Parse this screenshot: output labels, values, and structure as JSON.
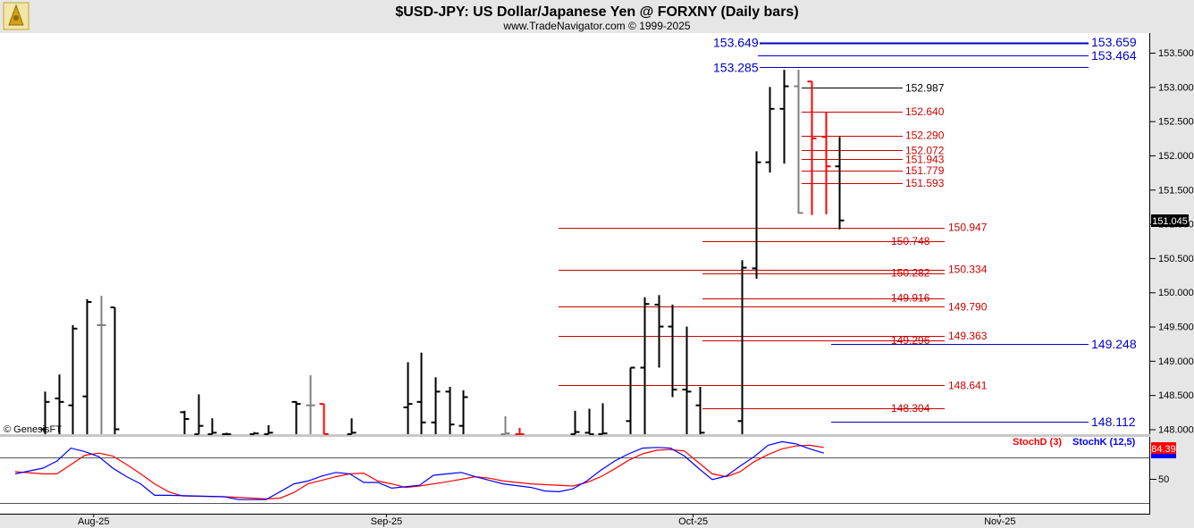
{
  "header": {
    "title": "$USD-JPY:  US Dollar/Japanese Yen @ FORXNY  (Daily bars)",
    "subtitle": "www.TradeNavigator.com © 1999-2025",
    "watermark": "© GenesisFT"
  },
  "colors": {
    "bar_black": "#000000",
    "bar_red": "#ff0000",
    "bar_gray": "#808080",
    "level_red": "#cc0000",
    "level_blue": "#0000cc",
    "stoch_d": "#ff0000",
    "stoch_k": "#0000ff",
    "price_tag_bg": "#000000",
    "stoch_tag_bg": "#ff0000"
  },
  "chart_data": [
    {
      "type": "bar",
      "subtype": "ohlc",
      "title": "$USD-JPY:  US Dollar/Japanese Yen @ FORXNY  (Daily bars)",
      "ylim": [
        147.9,
        153.75
      ],
      "y_ticks": [
        "153.500",
        "153.000",
        "152.500",
        "152.000",
        "151.500",
        "151.000",
        "150.500",
        "150.000",
        "149.500",
        "149.000",
        "148.500",
        "148.000"
      ],
      "y_tick_values": [
        153.5,
        153.0,
        152.5,
        152.0,
        151.5,
        151.0,
        150.5,
        150.0,
        149.5,
        149.0,
        148.5,
        148.0
      ],
      "x_labels": [
        "Aug-25",
        "Sep-25",
        "Oct-25",
        "Nov-25"
      ],
      "x_label_slots": [
        5.5,
        26.5,
        48.5,
        70.5
      ],
      "last_price": "151.045",
      "bars": [
        {
          "slot": 2,
          "o": 148.0,
          "h": 148.55,
          "l": 147.9,
          "c": 148.4,
          "color": "black"
        },
        {
          "slot": 3,
          "o": 148.45,
          "h": 148.8,
          "l": 147.9,
          "c": 148.4,
          "color": "black"
        },
        {
          "slot": 4,
          "o": 148.35,
          "h": 149.52,
          "l": 147.9,
          "c": 149.47,
          "color": "black"
        },
        {
          "slot": 5,
          "o": 148.48,
          "h": 149.9,
          "l": 147.9,
          "c": 149.86,
          "color": "black"
        },
        {
          "slot": 6,
          "o": 149.52,
          "h": 149.95,
          "l": 147.9,
          "c": 149.52,
          "color": "gray"
        },
        {
          "slot": 7,
          "o": 149.78,
          "h": 149.78,
          "l": 147.9,
          "c": 148.0,
          "color": "black"
        },
        {
          "slot": 12,
          "o": 148.25,
          "h": 148.27,
          "l": 147.9,
          "c": 148.15,
          "color": "black"
        },
        {
          "slot": 13,
          "o": 147.9,
          "h": 148.51,
          "l": 147.9,
          "c": 148.05,
          "color": "black"
        },
        {
          "slot": 14,
          "o": 147.9,
          "h": 148.16,
          "l": 147.9,
          "c": 147.95,
          "color": "black"
        },
        {
          "slot": 15,
          "o": 147.92,
          "h": 147.95,
          "l": 147.9,
          "c": 147.92,
          "color": "black"
        },
        {
          "slot": 17,
          "o": 147.9,
          "h": 147.96,
          "l": 147.9,
          "c": 147.94,
          "color": "black"
        },
        {
          "slot": 18,
          "o": 147.9,
          "h": 148.06,
          "l": 147.9,
          "c": 147.95,
          "color": "black"
        },
        {
          "slot": 20,
          "o": 148.4,
          "h": 148.41,
          "l": 147.9,
          "c": 148.37,
          "color": "black"
        },
        {
          "slot": 21,
          "o": 148.35,
          "h": 148.79,
          "l": 147.9,
          "c": 148.35,
          "color": "gray"
        },
        {
          "slot": 22,
          "o": 148.37,
          "h": 148.37,
          "l": 147.9,
          "c": 147.93,
          "color": "red"
        },
        {
          "slot": 24,
          "o": 147.9,
          "h": 148.16,
          "l": 147.9,
          "c": 147.95,
          "color": "black"
        },
        {
          "slot": 28,
          "o": 148.32,
          "h": 148.98,
          "l": 147.9,
          "c": 148.37,
          "color": "black"
        },
        {
          "slot": 29,
          "o": 148.4,
          "h": 149.12,
          "l": 147.9,
          "c": 148.1,
          "color": "black"
        },
        {
          "slot": 30,
          "o": 148.1,
          "h": 148.76,
          "l": 147.9,
          "c": 148.55,
          "color": "black"
        },
        {
          "slot": 31,
          "o": 148.55,
          "h": 148.62,
          "l": 147.9,
          "c": 148.07,
          "color": "black"
        },
        {
          "slot": 32,
          "o": 148.05,
          "h": 148.57,
          "l": 147.9,
          "c": 148.47,
          "color": "black"
        },
        {
          "slot": 35,
          "o": 147.92,
          "h": 148.19,
          "l": 147.9,
          "c": 147.94,
          "color": "gray"
        },
        {
          "slot": 36,
          "o": 147.92,
          "h": 148.02,
          "l": 147.9,
          "c": 147.92,
          "color": "red"
        },
        {
          "slot": 40,
          "o": 147.9,
          "h": 148.27,
          "l": 147.9,
          "c": 147.96,
          "color": "black"
        },
        {
          "slot": 41,
          "o": 147.95,
          "h": 148.3,
          "l": 147.9,
          "c": 147.92,
          "color": "black"
        },
        {
          "slot": 42,
          "o": 147.93,
          "h": 148.38,
          "l": 147.9,
          "c": 147.94,
          "color": "black"
        },
        {
          "slot": 44,
          "o": 148.12,
          "h": 148.9,
          "l": 147.9,
          "c": 148.9,
          "color": "black"
        },
        {
          "slot": 45,
          "o": 148.9,
          "h": 149.93,
          "l": 147.9,
          "c": 149.83,
          "color": "black"
        },
        {
          "slot": 46,
          "o": 149.82,
          "h": 149.96,
          "l": 148.9,
          "c": 149.5,
          "color": "black"
        },
        {
          "slot": 47,
          "o": 149.5,
          "h": 149.82,
          "l": 148.47,
          "c": 148.58,
          "color": "black"
        },
        {
          "slot": 48,
          "o": 148.58,
          "h": 149.5,
          "l": 147.9,
          "c": 148.55,
          "color": "black"
        },
        {
          "slot": 49,
          "o": 148.35,
          "h": 148.62,
          "l": 147.9,
          "c": 147.95,
          "color": "black"
        },
        {
          "slot": 52,
          "o": 148.12,
          "h": 150.47,
          "l": 147.9,
          "c": 150.36,
          "color": "black"
        },
        {
          "slot": 53,
          "o": 150.35,
          "h": 152.06,
          "l": 150.2,
          "c": 151.9,
          "color": "black"
        },
        {
          "slot": 54,
          "o": 151.9,
          "h": 153.0,
          "l": 151.75,
          "c": 152.68,
          "color": "black"
        },
        {
          "slot": 55,
          "o": 152.68,
          "h": 153.25,
          "l": 151.88,
          "c": 153.01,
          "color": "black"
        },
        {
          "slot": 56,
          "o": 153.01,
          "h": 153.25,
          "l": 151.15,
          "c": 151.16,
          "color": "gray"
        },
        {
          "slot": 57,
          "o": 153.08,
          "h": 153.08,
          "l": 151.13,
          "c": 152.25,
          "color": "red"
        },
        {
          "slot": 58,
          "o": 152.27,
          "h": 152.63,
          "l": 151.14,
          "c": 151.84,
          "color": "red"
        },
        {
          "slot": 59,
          "o": 151.84,
          "h": 152.27,
          "l": 150.92,
          "c": 151.05,
          "color": "black"
        }
      ],
      "levels": [
        {
          "label": "153.649",
          "value": 153.649,
          "color": "blue",
          "style": "thick",
          "label_pos": "left"
        },
        {
          "label": "153.659",
          "value": 153.659,
          "color": "blue",
          "style": "thin",
          "label_pos": "right"
        },
        {
          "label": "153.464",
          "value": 153.464,
          "color": "blue",
          "style": "thin",
          "label_pos": "right"
        },
        {
          "label": "153.285",
          "value": 153.285,
          "color": "blue",
          "style": "thin",
          "label_pos": "left"
        },
        {
          "label": "152.987",
          "value": 152.987,
          "color": "black",
          "style": "thin",
          "label_pos": "short"
        },
        {
          "label": "152.640",
          "value": 152.64,
          "color": "red",
          "style": "thin",
          "label_pos": "short"
        },
        {
          "label": "152.290",
          "value": 152.29,
          "color": "red",
          "style": "thin",
          "label_pos": "short"
        },
        {
          "label": "152.072",
          "value": 152.072,
          "color": "red",
          "style": "thin",
          "label_pos": "short"
        },
        {
          "label": "151.943",
          "value": 151.943,
          "color": "red",
          "style": "thin",
          "label_pos": "short"
        },
        {
          "label": "151.779",
          "value": 151.779,
          "color": "red",
          "style": "thin",
          "label_pos": "short"
        },
        {
          "label": "151.593",
          "value": 151.593,
          "color": "red",
          "style": "thin",
          "label_pos": "short"
        },
        {
          "label": "150.947",
          "value": 150.947,
          "color": "red",
          "style": "thin",
          "label_pos": "long"
        },
        {
          "label": "150.748",
          "value": 150.748,
          "color": "red",
          "style": "thin",
          "label_pos": "mid"
        },
        {
          "label": "150.334",
          "value": 150.334,
          "color": "red",
          "style": "thin",
          "label_pos": "long"
        },
        {
          "label": "150.282",
          "value": 150.282,
          "color": "red",
          "style": "thin",
          "label_pos": "mid"
        },
        {
          "label": "149.916",
          "value": 149.916,
          "color": "red",
          "style": "thin",
          "label_pos": "mid"
        },
        {
          "label": "149.790",
          "value": 149.79,
          "color": "red",
          "style": "thin",
          "label_pos": "long"
        },
        {
          "label": "149.363",
          "value": 149.363,
          "color": "red",
          "style": "thin",
          "label_pos": "long"
        },
        {
          "label": "149.296",
          "value": 149.296,
          "color": "red",
          "style": "thin",
          "label_pos": "mid"
        },
        {
          "label": "149.248",
          "value": 149.248,
          "color": "blue",
          "style": "thin",
          "label_pos": "right"
        },
        {
          "label": "148.641",
          "value": 148.641,
          "color": "red",
          "style": "thin",
          "label_pos": "long"
        },
        {
          "label": "148.304",
          "value": 148.304,
          "color": "red",
          "style": "thin",
          "label_pos": "mid"
        },
        {
          "label": "148.112",
          "value": 148.112,
          "color": "blue",
          "style": "thin",
          "label_pos": "right"
        }
      ]
    },
    {
      "type": "line",
      "title": "",
      "ylim": [
        0,
        100
      ],
      "y_ticks": [
        "50"
      ],
      "y_tick_values": [
        50
      ],
      "legend": [
        "StochD (3)",
        "StochK (12,5)"
      ],
      "last_value": "84.39",
      "series": [
        {
          "name": "StochD (3)",
          "color": "red",
          "points": [
            [
              0,
              55
            ],
            [
              2,
              52
            ],
            [
              3,
              52
            ],
            [
              5,
              78
            ],
            [
              6,
              81
            ],
            [
              7,
              77
            ],
            [
              8,
              65
            ],
            [
              9,
              52
            ],
            [
              10,
              38
            ],
            [
              11,
              27
            ],
            [
              12,
              21
            ],
            [
              15,
              20
            ],
            [
              18,
              17
            ],
            [
              19,
              18
            ],
            [
              20,
              26
            ],
            [
              21,
              38
            ],
            [
              22,
              43
            ],
            [
              23,
              48
            ],
            [
              24,
              52
            ],
            [
              25,
              53
            ],
            [
              26,
              42
            ],
            [
              27,
              38
            ],
            [
              28,
              33
            ],
            [
              29,
              35
            ],
            [
              31,
              41
            ],
            [
              33,
              48
            ],
            [
              34,
              46
            ],
            [
              35,
              42
            ],
            [
              37,
              38
            ],
            [
              40,
              35
            ],
            [
              41,
              40
            ],
            [
              42,
              48
            ],
            [
              43,
              59
            ],
            [
              44,
              71
            ],
            [
              45,
              80
            ],
            [
              46,
              85
            ],
            [
              47,
              86
            ],
            [
              48,
              84
            ],
            [
              49,
              68
            ],
            [
              50,
              52
            ],
            [
              51,
              48
            ],
            [
              52,
              55
            ],
            [
              53,
              69
            ],
            [
              54,
              79
            ],
            [
              55,
              87
            ],
            [
              56,
              91
            ],
            [
              57,
              92
            ],
            [
              58,
              89
            ]
          ]
        },
        {
          "name": "StochK (12,5)",
          "color": "blue",
          "points": [
            [
              0,
              52
            ],
            [
              2,
              60
            ],
            [
              3,
              70
            ],
            [
              4,
              88
            ],
            [
              5,
              83
            ],
            [
              6,
              76
            ],
            [
              7,
              60
            ],
            [
              8,
              48
            ],
            [
              9,
              38
            ],
            [
              10,
              22
            ],
            [
              11,
              22
            ],
            [
              15,
              20
            ],
            [
              16,
              16
            ],
            [
              18,
              16
            ],
            [
              20,
              38
            ],
            [
              21,
              42
            ],
            [
              22,
              49
            ],
            [
              23,
              54
            ],
            [
              24,
              52
            ],
            [
              25,
              40
            ],
            [
              26,
              40
            ],
            [
              27,
              32
            ],
            [
              29,
              36
            ],
            [
              30,
              50
            ],
            [
              31,
              52
            ],
            [
              32,
              54
            ],
            [
              33,
              48
            ],
            [
              34,
              43
            ],
            [
              35,
              38
            ],
            [
              37,
              33
            ],
            [
              38,
              28
            ],
            [
              39,
              27
            ],
            [
              40,
              31
            ],
            [
              41,
              42
            ],
            [
              42,
              57
            ],
            [
              43,
              70
            ],
            [
              44,
              80
            ],
            [
              45,
              88
            ],
            [
              46,
              89
            ],
            [
              47,
              88
            ],
            [
              48,
              77
            ],
            [
              49,
              60
            ],
            [
              50,
              44
            ],
            [
              51,
              49
            ],
            [
              52,
              63
            ],
            [
              53,
              76
            ],
            [
              54,
              92
            ],
            [
              55,
              97
            ],
            [
              56,
              94
            ],
            [
              57,
              87
            ],
            [
              58,
              81
            ]
          ]
        }
      ]
    }
  ]
}
